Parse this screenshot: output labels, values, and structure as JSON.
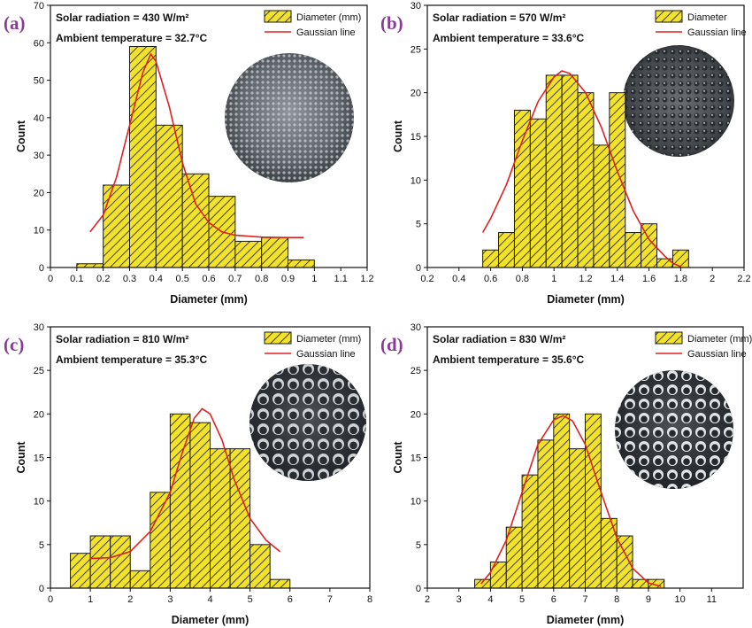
{
  "colors": {
    "bar_fill": "#f2e22a",
    "hatch": "#1a1a1a",
    "gauss": "#e02020",
    "panel_label": "#8a3a9a"
  },
  "chart_data": [
    {
      "type": "bar",
      "panel_label": "(a)",
      "info_lines": [
        "Solar radiation = 430 W/m²",
        "Ambient temperature = 32.7°C"
      ],
      "xlabel": "Diameter (mm)",
      "ylabel": "Count",
      "xlim": [
        0,
        1.2
      ],
      "ylim": [
        0,
        70
      ],
      "xticks": [
        0,
        0.1,
        0.2,
        0.3,
        0.4,
        0.5,
        0.6,
        0.7,
        0.8,
        0.9,
        1,
        1.1,
        1.2
      ],
      "xtick_labels": [
        "0",
        "0.1",
        "0.2",
        "0.3",
        "0.4",
        "0.5",
        "0.6",
        "0.7",
        "0.8",
        "0.9",
        "1",
        "1.1",
        "1.2"
      ],
      "yticks": [
        0,
        10,
        20,
        30,
        40,
        50,
        60,
        70
      ],
      "bins": [
        [
          0.1,
          0.2,
          1
        ],
        [
          0.2,
          0.3,
          22
        ],
        [
          0.3,
          0.4,
          59
        ],
        [
          0.4,
          0.5,
          38
        ],
        [
          0.5,
          0.6,
          25
        ],
        [
          0.6,
          0.7,
          19
        ],
        [
          0.7,
          0.8,
          7
        ],
        [
          0.8,
          0.9,
          8
        ],
        [
          0.9,
          1.0,
          2
        ]
      ],
      "gaussian": [
        [
          0.15,
          9.5
        ],
        [
          0.2,
          14
        ],
        [
          0.25,
          24
        ],
        [
          0.3,
          38
        ],
        [
          0.35,
          52
        ],
        [
          0.38,
          57
        ],
        [
          0.4,
          55
        ],
        [
          0.45,
          43
        ],
        [
          0.5,
          28
        ],
        [
          0.55,
          17
        ],
        [
          0.6,
          12
        ],
        [
          0.65,
          9.5
        ],
        [
          0.7,
          8.6
        ],
        [
          0.8,
          8.1
        ],
        [
          0.9,
          8
        ],
        [
          0.96,
          8
        ]
      ],
      "legend": {
        "bar": "Diameter (mm)",
        "line": "Gaussian line"
      },
      "inset": "droplet-photo"
    },
    {
      "type": "bar",
      "panel_label": "(b)",
      "info_lines": [
        "Solar radiation = 570 W/m²",
        "Ambient temperature = 33.6°C"
      ],
      "xlabel": "Diameter (mm)",
      "ylabel": "Count",
      "xlim": [
        0.2,
        2.2
      ],
      "ylim": [
        0,
        30
      ],
      "xticks": [
        0.2,
        0.4,
        0.6,
        0.8,
        1,
        1.2,
        1.4,
        1.6,
        1.8,
        2,
        2.2
      ],
      "xtick_labels": [
        "0.2",
        "0.4",
        "0.6",
        "0.8",
        "1",
        "1.2",
        "1.4",
        "1.6",
        "1.8",
        "2",
        "2.2"
      ],
      "yticks": [
        0,
        5,
        10,
        15,
        20,
        25,
        30
      ],
      "bins": [
        [
          0.55,
          0.65,
          2
        ],
        [
          0.65,
          0.75,
          4
        ],
        [
          0.75,
          0.85,
          18
        ],
        [
          0.85,
          0.95,
          17
        ],
        [
          0.95,
          1.05,
          22
        ],
        [
          1.05,
          1.15,
          22
        ],
        [
          1.15,
          1.25,
          20
        ],
        [
          1.25,
          1.35,
          14
        ],
        [
          1.35,
          1.45,
          20
        ],
        [
          1.45,
          1.55,
          4
        ],
        [
          1.55,
          1.65,
          5
        ],
        [
          1.65,
          1.75,
          1
        ],
        [
          1.75,
          1.85,
          2
        ]
      ],
      "gaussian": [
        [
          0.55,
          4
        ],
        [
          0.6,
          5.6
        ],
        [
          0.7,
          9.5
        ],
        [
          0.8,
          14.5
        ],
        [
          0.9,
          19
        ],
        [
          1.0,
          21.8
        ],
        [
          1.05,
          22.5
        ],
        [
          1.1,
          22.2
        ],
        [
          1.2,
          20
        ],
        [
          1.3,
          16
        ],
        [
          1.4,
          11
        ],
        [
          1.5,
          6.5
        ],
        [
          1.6,
          3.2
        ],
        [
          1.7,
          1.3
        ],
        [
          1.75,
          0.5
        ],
        [
          1.8,
          0.1
        ]
      ],
      "legend": {
        "bar": "Diameter",
        "line": "Gaussian line"
      },
      "inset": "droplet-photo"
    },
    {
      "type": "bar",
      "panel_label": "(c)",
      "info_lines": [
        "Solar radiation = 810 W/m²",
        "Ambient temperature = 35.3°C"
      ],
      "xlabel": "Diameter (mm)",
      "ylabel": "Count",
      "xlim": [
        0,
        8
      ],
      "ylim": [
        0,
        30
      ],
      "xticks": [
        0,
        1,
        2,
        3,
        4,
        5,
        6,
        7,
        8
      ],
      "xtick_labels": [
        "0",
        "1",
        "2",
        "3",
        "4",
        "5",
        "6",
        "7",
        "8"
      ],
      "yticks": [
        0,
        5,
        10,
        15,
        20,
        25,
        30
      ],
      "bins": [
        [
          0.5,
          1.0,
          4
        ],
        [
          1.0,
          1.5,
          6
        ],
        [
          1.5,
          2.0,
          6
        ],
        [
          2.0,
          2.5,
          2
        ],
        [
          2.5,
          3.0,
          11
        ],
        [
          3.0,
          3.5,
          20
        ],
        [
          3.5,
          4.0,
          19
        ],
        [
          4.0,
          4.5,
          16
        ],
        [
          4.5,
          5.0,
          16
        ],
        [
          5.0,
          5.5,
          5
        ],
        [
          5.5,
          6.0,
          1
        ]
      ],
      "gaussian": [
        [
          1.0,
          3.4
        ],
        [
          1.5,
          3.5
        ],
        [
          2.0,
          4.2
        ],
        [
          2.5,
          6.5
        ],
        [
          3.0,
          11
        ],
        [
          3.3,
          15.5
        ],
        [
          3.6,
          19.5
        ],
        [
          3.8,
          20.6
        ],
        [
          4.0,
          20
        ],
        [
          4.3,
          17
        ],
        [
          4.6,
          12.5
        ],
        [
          5.0,
          8
        ],
        [
          5.4,
          5.5
        ],
        [
          5.75,
          4.2
        ]
      ],
      "legend": {
        "bar": "Diameter (mm)",
        "line": "Gaussian line"
      },
      "inset": "droplet-photo"
    },
    {
      "type": "bar",
      "panel_label": "(d)",
      "info_lines": [
        "Solar radiation = 830 W/m²",
        "Ambient temperature = 35.6°C"
      ],
      "xlabel": "Diameter (mm)",
      "ylabel": "Count",
      "xlim": [
        2,
        12
      ],
      "ylim": [
        0,
        30
      ],
      "xticks": [
        2,
        3,
        4,
        5,
        6,
        7,
        8,
        9,
        10,
        11
      ],
      "xtick_labels": [
        "2",
        "3",
        "4",
        "5",
        "6",
        "7",
        "8",
        "9",
        "10",
        "11"
      ],
      "yticks": [
        0,
        5,
        10,
        15,
        20,
        25,
        30
      ],
      "bins": [
        [
          3.5,
          4.0,
          1
        ],
        [
          4.0,
          4.5,
          3
        ],
        [
          4.5,
          5.0,
          7
        ],
        [
          5.0,
          5.5,
          13
        ],
        [
          5.5,
          6.0,
          17
        ],
        [
          6.0,
          6.5,
          20
        ],
        [
          6.5,
          7.0,
          16
        ],
        [
          7.0,
          7.5,
          20
        ],
        [
          7.5,
          8.0,
          8
        ],
        [
          8.0,
          8.5,
          6
        ],
        [
          8.5,
          9.0,
          1
        ],
        [
          9.0,
          9.5,
          1
        ]
      ],
      "gaussian": [
        [
          3.7,
          0.5
        ],
        [
          4.0,
          1.8
        ],
        [
          4.5,
          5.5
        ],
        [
          5.0,
          11
        ],
        [
          5.5,
          16.5
        ],
        [
          6.0,
          19.3
        ],
        [
          6.3,
          19.8
        ],
        [
          6.6,
          19.2
        ],
        [
          7.0,
          16.5
        ],
        [
          7.5,
          11
        ],
        [
          8.0,
          5.8
        ],
        [
          8.5,
          2.3
        ],
        [
          9.0,
          0.6
        ],
        [
          9.4,
          0.2
        ]
      ],
      "legend": {
        "bar": "Diameter (mm)",
        "line": "Gaussian line"
      },
      "inset": "droplet-photo"
    }
  ]
}
